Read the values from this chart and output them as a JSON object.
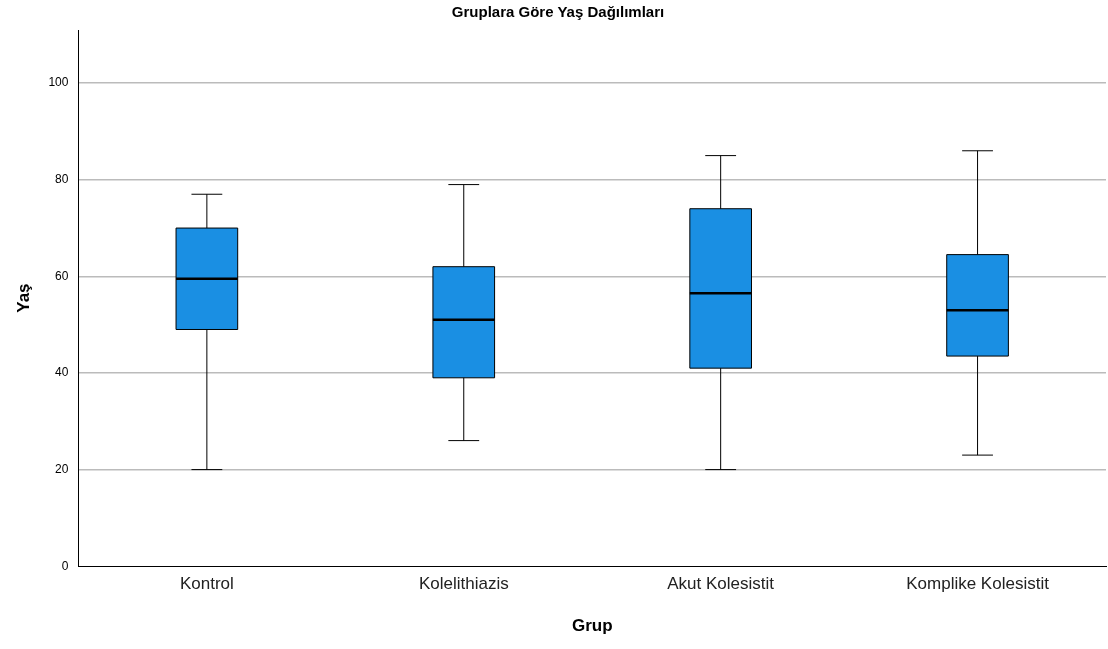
{
  "chart_data": {
    "type": "box",
    "title": "Gruplara Göre Yaş Dağılımları",
    "xlabel": "Grup",
    "ylabel": "Yaş",
    "categories": [
      "Kontrol",
      "Kolelithiazis",
      "Akut Kolesistit",
      "Komplike Kolesistit"
    ],
    "color": "#1a8fe3",
    "boxes": [
      {
        "low": 20,
        "q1": 49,
        "median": 59.5,
        "q3": 70,
        "high": 77
      },
      {
        "low": 26,
        "q1": 39,
        "median": 51,
        "q3": 62,
        "high": 79
      },
      {
        "low": 20,
        "q1": 41,
        "median": 56.5,
        "q3": 74,
        "high": 85
      },
      {
        "low": 23,
        "q1": 43.5,
        "median": 53,
        "q3": 64.5,
        "high": 86
      }
    ],
    "ylim": [
      0,
      111
    ],
    "yticks": [
      0,
      20,
      40,
      60,
      80,
      100
    ],
    "grid": "y"
  }
}
